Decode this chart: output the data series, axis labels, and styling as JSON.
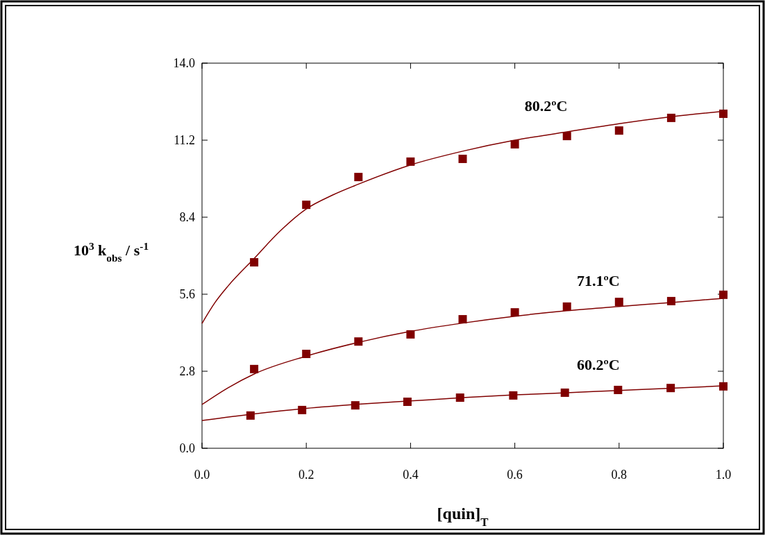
{
  "chart_data": {
    "type": "scatter",
    "xlabel": "[quin]$_{T}$",
    "ylabel": "10$^{3}$ k$_{obs}$ / s$^{-1}$",
    "xlim": [
      0,
      1
    ],
    "ylim": [
      0,
      14
    ],
    "xticks": [
      {
        "value": 0,
        "label": "0.0"
      },
      0.2,
      0.4,
      0.6,
      0.8,
      {
        "value": 1,
        "label": "1.0"
      }
    ],
    "yticks": [
      {
        "value": 0,
        "label": "0.0"
      },
      2.8,
      5.6,
      8.4,
      11.2,
      {
        "value": 14,
        "label": "14.0"
      }
    ],
    "grid": false,
    "marker": "square",
    "series": [
      {
        "color": "#800000",
        "x": [
          0.1,
          0.2,
          0.3,
          0.4,
          0.5,
          0.6,
          0.7,
          0.8,
          0.9,
          1.0
        ],
        "values": [
          6.76,
          8.85,
          9.86,
          10.42,
          10.52,
          11.05,
          11.35,
          11.55,
          12.01,
          12.16
        ]
      },
      {
        "color": "#800000",
        "x": [
          0.1,
          0.2,
          0.3,
          0.4,
          0.5,
          0.6,
          0.7,
          0.8,
          0.9,
          1.0
        ],
        "values": [
          2.88,
          3.43,
          3.88,
          4.14,
          4.69,
          4.94,
          5.15,
          5.32,
          5.35,
          5.58
        ]
      },
      {
        "color": "#800000",
        "x": [
          0.093,
          0.192,
          0.294,
          0.394,
          0.495,
          0.597,
          0.696,
          0.798,
          0.899,
          1.0
        ],
        "values": [
          1.19,
          1.39,
          1.56,
          1.69,
          1.84,
          1.92,
          2.02,
          2.12,
          2.19,
          2.25
        ]
      },
      {
        "type": "line",
        "name": "80.2ºC",
        "marker": "none",
        "line_style": "solid",
        "color": "#800000",
        "x": [
          0,
          0.025,
          0.05,
          0.1,
          0.15,
          0.2,
          0.25,
          0.3,
          0.4,
          0.5,
          0.6,
          0.7,
          0.8,
          0.9,
          1.0
        ],
        "values": [
          4.54,
          5.3,
          5.9,
          6.9,
          7.9,
          8.7,
          9.2,
          9.6,
          10.3,
          10.8,
          11.2,
          11.5,
          11.8,
          12.05,
          12.25
        ]
      },
      {
        "type": "line",
        "name": "71.1ºC",
        "marker": "none",
        "line_style": "solid",
        "color": "#800000",
        "x": [
          0,
          0.05,
          0.1,
          0.2,
          0.3,
          0.4,
          0.5,
          0.6,
          0.7,
          0.8,
          0.9,
          1.0
        ],
        "values": [
          1.59,
          2.2,
          2.7,
          3.35,
          3.85,
          4.25,
          4.55,
          4.8,
          5.0,
          5.15,
          5.3,
          5.45
        ]
      },
      {
        "type": "line",
        "name": "60.2ºC",
        "marker": "none",
        "line_style": "solid",
        "color": "#800000",
        "x": [
          0,
          0.1,
          0.2,
          0.3,
          0.4,
          0.5,
          0.6,
          0.7,
          0.8,
          0.9,
          1.0
        ],
        "values": [
          1.01,
          1.25,
          1.45,
          1.6,
          1.72,
          1.84,
          1.94,
          2.02,
          2.1,
          2.18,
          2.27
        ]
      }
    ]
  }
}
